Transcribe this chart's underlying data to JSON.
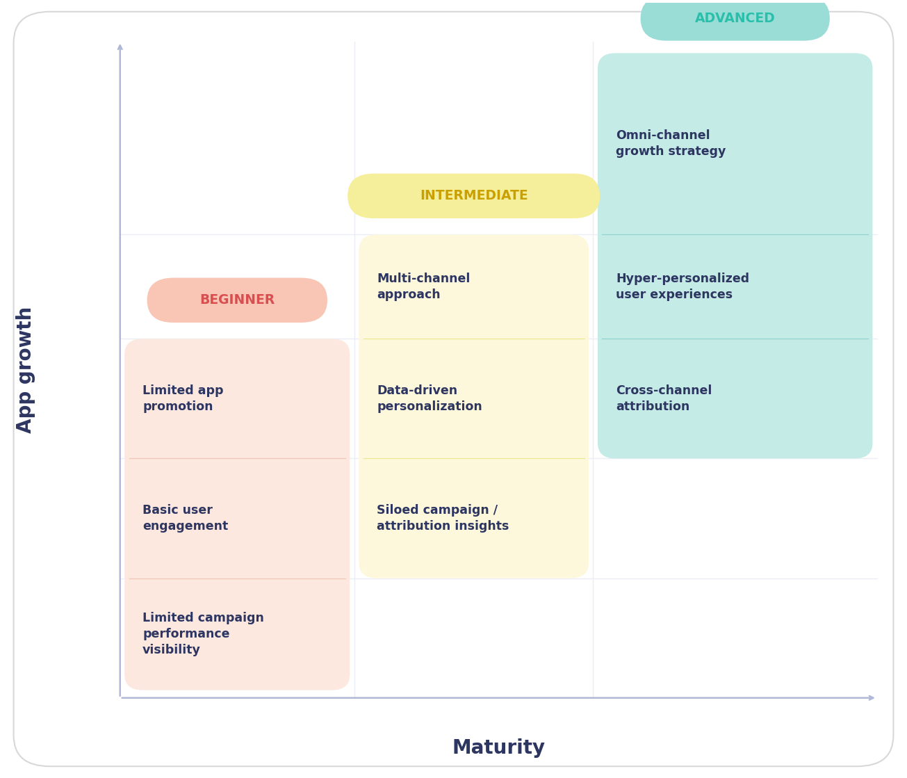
{
  "xlabel": "Maturity",
  "ylabel": "App growth",
  "background_color": "#ffffff",
  "axis_color": "#b0b8d8",
  "grid_color": "#eceef5",
  "text_color": "#2d3561",
  "beginner_label": "BEGINNER",
  "beginner_label_color": "#d94f4f",
  "beginner_bg": "#fde8e0",
  "beginner_pill_bg": "#f9c5b5",
  "intermediate_label": "INTERMEDIATE",
  "intermediate_label_color": "#c9a000",
  "intermediate_bg": "#fdf8dc",
  "intermediate_pill_bg": "#f5ee9a",
  "advanced_label": "ADVANCED",
  "advanced_label_color": "#2abfaa",
  "advanced_bg": "#c5ebe6",
  "advanced_pill_bg": "#9addd6",
  "beginner_items": [
    "Limited app\npromotion",
    "Basic user\nengagement",
    "Limited campaign\nperformance\nvisibility"
  ],
  "intermediate_items": [
    "Multi-channel\napproach",
    "Data-driven\npersonalization",
    "Siloed campaign /\nattribution insights"
  ],
  "advanced_items": [
    "Omni-channel\ngrowth strategy",
    "Hyper-personalized\nuser experiences",
    "Cross-channel\nattribution"
  ]
}
